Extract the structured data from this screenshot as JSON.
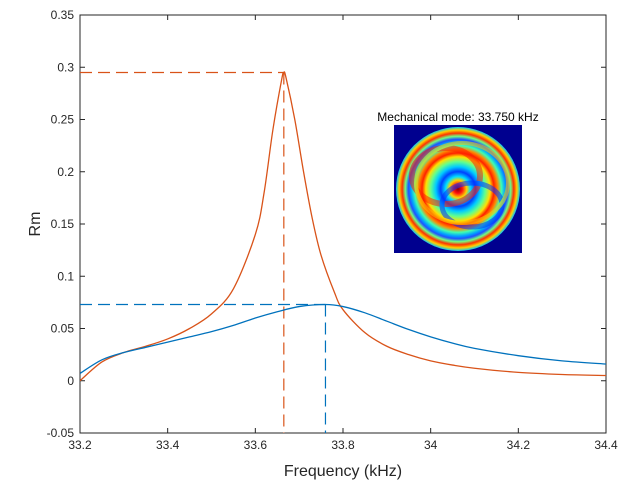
{
  "chart_data": {
    "type": "line",
    "title": "",
    "xlabel": "Frequency (kHz)",
    "ylabel": "Rm",
    "xlim": [
      33.2,
      34.4
    ],
    "ylim": [
      -0.05,
      0.35
    ],
    "xticks": [
      33.2,
      33.4,
      33.6,
      33.8,
      34.0,
      34.2,
      34.4
    ],
    "xtick_labels": [
      "33.2",
      "33.4",
      "33.6",
      "33.8",
      "34",
      "34.2",
      "34.4"
    ],
    "yticks": [
      -0.05,
      0,
      0.05,
      0.1,
      0.15,
      0.2,
      0.25,
      0.3,
      0.35
    ],
    "ytick_labels": [
      "-0.05",
      "0",
      "0.05",
      "0.1",
      "0.15",
      "0.2",
      "0.25",
      "0.3",
      "0.35"
    ],
    "grid": false,
    "series": [
      {
        "color": "#D95319",
        "x": [
          33.2,
          33.25,
          33.3,
          33.35,
          33.4,
          33.45,
          33.5,
          33.55,
          33.6,
          33.62,
          33.64,
          33.66,
          33.665,
          33.67,
          33.69,
          33.71,
          33.73,
          33.75,
          33.78,
          33.8,
          33.85,
          33.9,
          33.95,
          34.0,
          34.05,
          34.1,
          34.2,
          34.3,
          34.4
        ],
        "y": [
          0.0,
          0.018,
          0.027,
          0.033,
          0.04,
          0.05,
          0.064,
          0.088,
          0.14,
          0.18,
          0.24,
          0.288,
          0.295,
          0.29,
          0.25,
          0.2,
          0.155,
          0.12,
          0.085,
          0.068,
          0.046,
          0.033,
          0.025,
          0.019,
          0.015,
          0.012,
          0.008,
          0.006,
          0.005
        ],
        "peak": {
          "x": 33.665,
          "y": 0.295
        }
      },
      {
        "color": "#0072BD",
        "x": [
          33.2,
          33.25,
          33.3,
          33.35,
          33.4,
          33.45,
          33.5,
          33.55,
          33.6,
          33.65,
          33.7,
          33.76,
          33.8,
          33.85,
          33.9,
          33.95,
          34.0,
          34.05,
          34.1,
          34.2,
          34.3,
          34.4
        ],
        "y": [
          0.007,
          0.02,
          0.027,
          0.032,
          0.037,
          0.042,
          0.047,
          0.053,
          0.06,
          0.066,
          0.071,
          0.073,
          0.071,
          0.065,
          0.057,
          0.049,
          0.042,
          0.036,
          0.031,
          0.024,
          0.019,
          0.016
        ],
        "peak": {
          "x": 33.76,
          "y": 0.073
        }
      }
    ],
    "inset": {
      "title": "Mechanical mode: 33.750 kHz",
      "image": "circular mechanical mode shape with concentric red/yellow/cyan/blue rings on dark blue background"
    }
  }
}
